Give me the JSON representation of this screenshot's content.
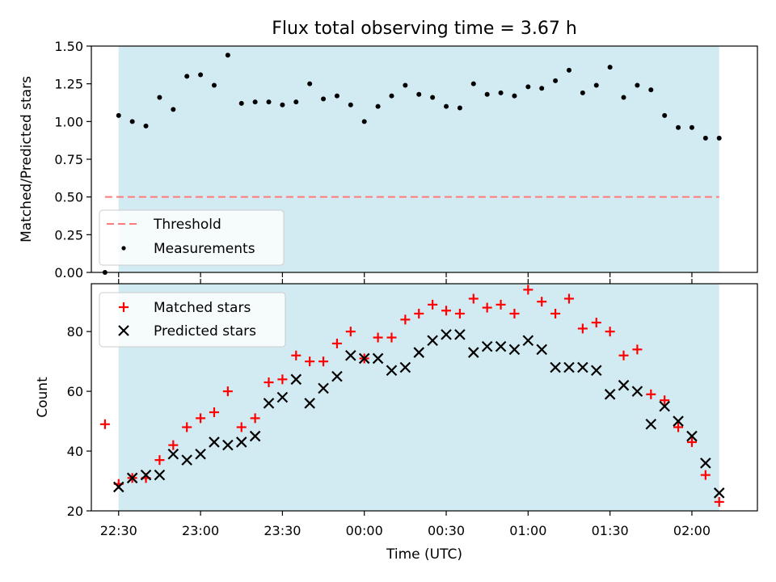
{
  "title": "Flux total observing time = 3.67 h",
  "colors": {
    "shade": "#add8e6",
    "threshold": "#ff7b7b",
    "matched": "#ff0000",
    "predicted": "#000000",
    "measurements": "#000000"
  },
  "chart_data": [
    {
      "type": "scatter",
      "panel": "top",
      "ylabel": "Matched/Predicted stars",
      "xlabel": "",
      "xlim": [
        "22:20",
        "02:24"
      ],
      "ylim": [
        0,
        1.5
      ],
      "yticks": [
        "0.00",
        "0.25",
        "0.50",
        "0.75",
        "1.00",
        "1.25",
        "1.50"
      ],
      "shaded_span": [
        "22:30",
        "02:10"
      ],
      "threshold": 0.5,
      "legend": [
        "Threshold",
        "Measurements"
      ],
      "legend_position": "lower-left",
      "series": [
        {
          "name": "Measurements",
          "x": [
            "22:25",
            "22:30",
            "22:35",
            "22:40",
            "22:45",
            "22:50",
            "22:55",
            "23:00",
            "23:05",
            "23:10",
            "23:15",
            "23:20",
            "23:25",
            "23:30",
            "23:35",
            "23:40",
            "23:45",
            "23:50",
            "23:55",
            "00:00",
            "00:05",
            "00:10",
            "00:15",
            "00:20",
            "00:25",
            "00:30",
            "00:35",
            "00:40",
            "00:45",
            "00:50",
            "00:55",
            "01:00",
            "01:05",
            "01:10",
            "01:15",
            "01:20",
            "01:25",
            "01:30",
            "01:35",
            "01:40",
            "01:45",
            "01:50",
            "01:55",
            "02:00",
            "02:05",
            "02:10"
          ],
          "y": [
            0.0,
            1.04,
            1.0,
            0.97,
            1.16,
            1.08,
            1.3,
            1.31,
            1.24,
            1.44,
            1.12,
            1.13,
            1.13,
            1.11,
            1.13,
            1.25,
            1.15,
            1.17,
            1.11,
            1.0,
            1.1,
            1.17,
            1.24,
            1.18,
            1.16,
            1.1,
            1.09,
            1.25,
            1.18,
            1.19,
            1.17,
            1.23,
            1.22,
            1.27,
            1.34,
            1.19,
            1.24,
            1.36,
            1.16,
            1.24,
            1.21,
            1.04,
            0.96,
            0.96,
            0.89,
            0.89
          ]
        }
      ]
    },
    {
      "type": "scatter",
      "panel": "bottom",
      "ylabel": "Count",
      "xlabel": "Time (UTC)",
      "xlim": [
        "22:20",
        "02:24"
      ],
      "ylim": [
        20,
        96
      ],
      "yticks": [
        "20",
        "40",
        "60",
        "80"
      ],
      "xticks": [
        "22:30",
        "23:00",
        "23:30",
        "00:00",
        "00:30",
        "01:00",
        "01:30",
        "02:00"
      ],
      "shaded_span": [
        "22:30",
        "02:10"
      ],
      "legend": [
        "Matched stars",
        "Predicted stars"
      ],
      "legend_position": "upper-left",
      "series": [
        {
          "name": "Matched stars",
          "x": [
            "22:25",
            "22:30",
            "22:35",
            "22:40",
            "22:45",
            "22:50",
            "22:55",
            "23:00",
            "23:05",
            "23:10",
            "23:15",
            "23:20",
            "23:25",
            "23:30",
            "23:35",
            "23:40",
            "23:45",
            "23:50",
            "23:55",
            "00:00",
            "00:05",
            "00:10",
            "00:15",
            "00:20",
            "00:25",
            "00:30",
            "00:35",
            "00:40",
            "00:45",
            "00:50",
            "00:55",
            "01:00",
            "01:05",
            "01:10",
            "01:15",
            "01:20",
            "01:25",
            "01:30",
            "01:35",
            "01:40",
            "01:45",
            "01:50",
            "01:55",
            "02:00",
            "02:05",
            "02:10"
          ],
          "y": [
            49,
            29,
            31,
            31,
            37,
            42,
            48,
            51,
            53,
            60,
            48,
            51,
            63,
            64,
            72,
            70,
            70,
            76,
            80,
            71,
            78,
            78,
            84,
            86,
            89,
            87,
            86,
            91,
            88,
            89,
            86,
            94,
            90,
            86,
            91,
            81,
            83,
            80,
            72,
            74,
            59,
            57,
            48,
            43,
            32,
            23
          ]
        },
        {
          "name": "Predicted stars",
          "x": [
            "22:30",
            "22:35",
            "22:40",
            "22:45",
            "22:50",
            "22:55",
            "23:00",
            "23:05",
            "23:10",
            "23:15",
            "23:20",
            "23:25",
            "23:30",
            "23:35",
            "23:40",
            "23:45",
            "23:50",
            "23:55",
            "00:00",
            "00:05",
            "00:10",
            "00:15",
            "00:20",
            "00:25",
            "00:30",
            "00:35",
            "00:40",
            "00:45",
            "00:50",
            "00:55",
            "01:00",
            "01:05",
            "01:10",
            "01:15",
            "01:20",
            "01:25",
            "01:30",
            "01:35",
            "01:40",
            "01:45",
            "01:50",
            "01:55",
            "02:00",
            "02:05",
            "02:10"
          ],
          "y": [
            28,
            31,
            32,
            32,
            39,
            37,
            39,
            43,
            42,
            43,
            45,
            56,
            58,
            64,
            56,
            61,
            65,
            72,
            71,
            71,
            67,
            68,
            73,
            77,
            79,
            79,
            73,
            75,
            75,
            74,
            77,
            74,
            68,
            68,
            68,
            67,
            59,
            62,
            60,
            49,
            55,
            50,
            45,
            36,
            26
          ]
        }
      ]
    }
  ]
}
